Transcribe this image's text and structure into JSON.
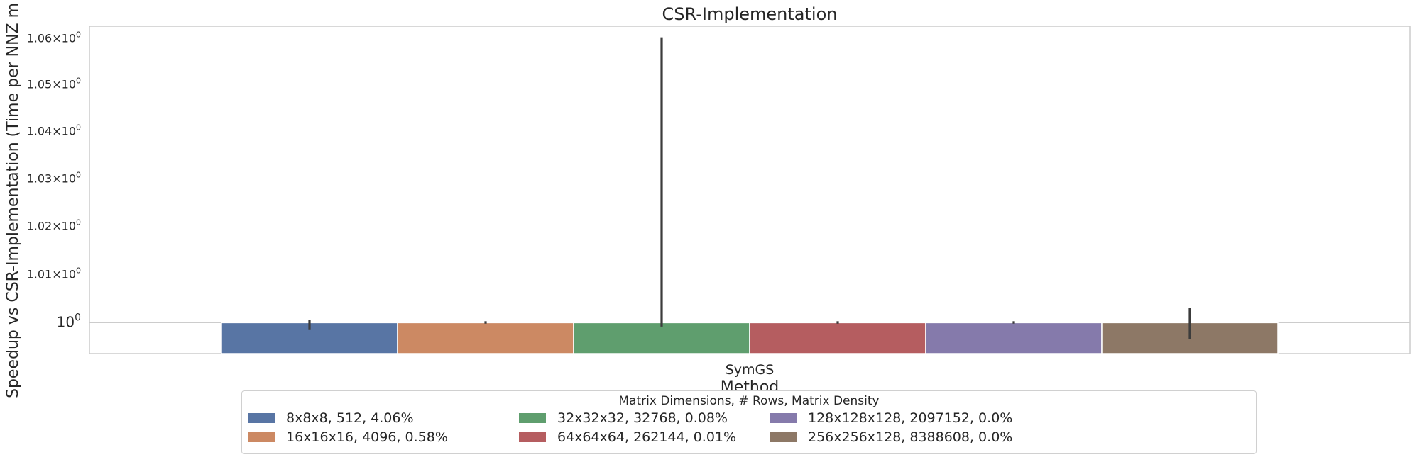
{
  "chart_data": {
    "type": "bar",
    "title": "CSR-Implementation",
    "xlabel": "Method",
    "ylabel": "Speedup vs CSR-Implementation (Time per NNZ m",
    "yscale": "log",
    "ylim": [
      0.9937,
      1.0625
    ],
    "y_ticks": [
      {
        "value": 1.0,
        "base": "10",
        "exp": "0"
      },
      {
        "value": 1.01,
        "base": "1.01×10",
        "exp": "0"
      },
      {
        "value": 1.02,
        "base": "1.02×10",
        "exp": "0"
      },
      {
        "value": 1.03,
        "base": "1.03×10",
        "exp": "0"
      },
      {
        "value": 1.04,
        "base": "1.04×10",
        "exp": "0"
      },
      {
        "value": 1.05,
        "base": "1.05×10",
        "exp": "0"
      },
      {
        "value": 1.06,
        "base": "1.06×10",
        "exp": "0"
      }
    ],
    "categories": [
      "SymGS"
    ],
    "legend_title": "Matrix Dimensions, # Rows, Matrix Density",
    "series": [
      {
        "name": "8x8x8, 512, 4.06%",
        "color": "#5875a4",
        "values": [
          1.0
        ],
        "err_low": [
          0.9985
        ],
        "err_high": [
          1.0005
        ]
      },
      {
        "name": "16x16x16, 4096, 0.58%",
        "color": "#cc8963",
        "values": [
          1.0
        ],
        "err_low": [
          0.9998
        ],
        "err_high": [
          1.0003
        ]
      },
      {
        "name": "32x32x32, 32768, 0.08%",
        "color": "#5f9e6e",
        "values": [
          1.0
        ],
        "err_low": [
          0.9992
        ],
        "err_high": [
          1.0601
        ]
      },
      {
        "name": "64x64x64, 262144, 0.01%",
        "color": "#b55d60",
        "values": [
          1.0
        ],
        "err_low": [
          0.9998
        ],
        "err_high": [
          1.0003
        ]
      },
      {
        "name": "128x128x128, 2097152, 0.0%",
        "color": "#857aab",
        "values": [
          1.0
        ],
        "err_low": [
          0.9998
        ],
        "err_high": [
          1.0003
        ]
      },
      {
        "name": "256x256x128, 8388608, 0.0%",
        "color": "#8d7866",
        "values": [
          1.0
        ],
        "err_low": [
          0.9966
        ],
        "err_high": [
          1.003
        ]
      }
    ]
  }
}
